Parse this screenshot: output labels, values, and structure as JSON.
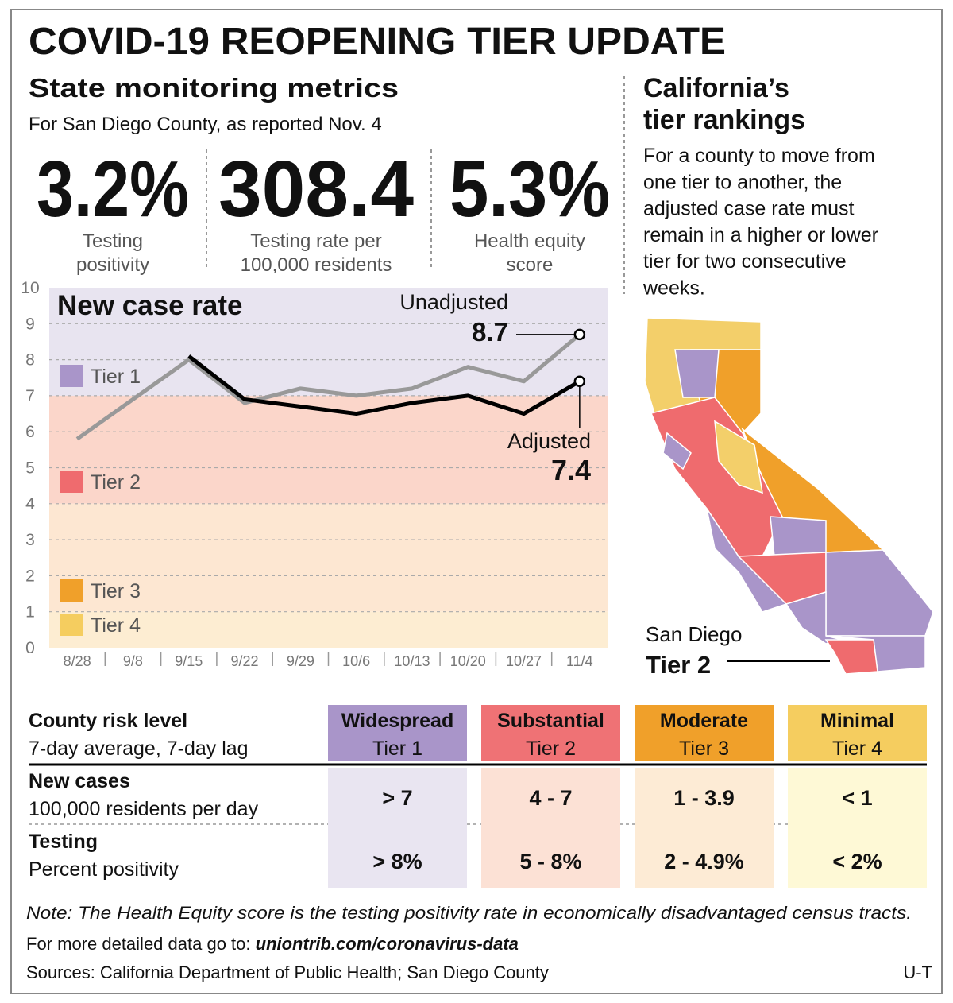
{
  "header": {
    "title": "COVID-19 REOPENING TIER UPDATE"
  },
  "metrics": {
    "title": "State monitoring metrics",
    "subtitle": "For San Diego County, as reported Nov. 4",
    "items": [
      {
        "value": "3.2%",
        "label_lines": [
          "Testing",
          "positivity"
        ]
      },
      {
        "value": "308.4",
        "label_lines": [
          "Testing rate per",
          "100,000 residents"
        ]
      },
      {
        "value": "5.3%",
        "label_lines": [
          "Health equity",
          "score"
        ]
      }
    ]
  },
  "chart_data": {
    "type": "line",
    "title": "New case rate",
    "categories": [
      "8/28",
      "9/8",
      "9/15",
      "9/22",
      "9/29",
      "10/6",
      "10/13",
      "10/20",
      "10/27",
      "11/4"
    ],
    "series": [
      {
        "name": "Unadjusted",
        "color": "#999999",
        "values": [
          5.8,
          6.9,
          8.0,
          6.8,
          7.2,
          7.0,
          7.2,
          7.8,
          7.4,
          8.7
        ]
      },
      {
        "name": "Adjusted",
        "color": "#000000",
        "values": [
          null,
          null,
          8.1,
          6.9,
          6.7,
          6.5,
          6.8,
          7.0,
          6.5,
          7.4
        ]
      }
    ],
    "bands": [
      {
        "name": "Tier 1",
        "from": 7,
        "to": 10,
        "color": "#a995c9",
        "background": "#e8e4f0"
      },
      {
        "name": "Tier 2",
        "from": 4,
        "to": 7,
        "color": "#ef6b6e",
        "background": "#fbd6ca"
      },
      {
        "name": "Tier 3",
        "from": 1,
        "to": 4,
        "color": "#f0a02a",
        "background": "#fde7d2"
      },
      {
        "name": "Tier 4",
        "from": 0,
        "to": 1,
        "color": "#f5cd5f",
        "background": "#fdedd2"
      }
    ],
    "ylim": [
      0,
      10
    ],
    "yticks": [
      0,
      1,
      2,
      3,
      4,
      5,
      6,
      7,
      8,
      9,
      10
    ],
    "grid": true
  },
  "rankings": {
    "title_lines": [
      "California’s",
      "tier rankings"
    ],
    "text_lines": [
      "For a county to move from",
      "one tier to another, the",
      "adjusted case rate must",
      "remain in a higher or lower",
      "tier for two consecutive",
      "weeks."
    ],
    "callout_lines": [
      "San Diego",
      "Tier 2"
    ]
  },
  "table": {
    "header_lines": [
      "County risk level",
      "7-day average, 7-day lag"
    ],
    "columns": [
      {
        "name": "Widespread",
        "tier": "Tier 1",
        "color": "#a995c9",
        "background": "#e9e5f1"
      },
      {
        "name": "Substantial",
        "tier": "Tier 2",
        "color": "#ef7275",
        "background": "#fce1d5"
      },
      {
        "name": "Moderate",
        "tier": "Tier 3",
        "color": "#f0a02a",
        "background": "#fdebd5"
      },
      {
        "name": "Minimal",
        "tier": "Tier 4",
        "color": "#f5cd5f",
        "background": "#fef9d6"
      }
    ],
    "rows": [
      {
        "title": "New cases",
        "subtitle": "100,000 residents per day",
        "cells": [
          "> 7",
          "4 - 7",
          "1 - 3.9",
          "< 1"
        ]
      },
      {
        "title": "Testing",
        "subtitle": "Percent positivity",
        "cells": [
          "> 8%",
          "5 - 8%",
          "2 - 4.9%",
          "< 2%"
        ]
      }
    ]
  },
  "footer": {
    "note": "Note: The Health Equity score is the testing positivity rate in economically disadvantaged census tracts.",
    "more_prefix": "For more detailed data go to:",
    "more_link": "uniontrib.com/coronavirus-data",
    "sources": "Sources: California Department of Public Health; San Diego County",
    "credit": "U-T"
  }
}
